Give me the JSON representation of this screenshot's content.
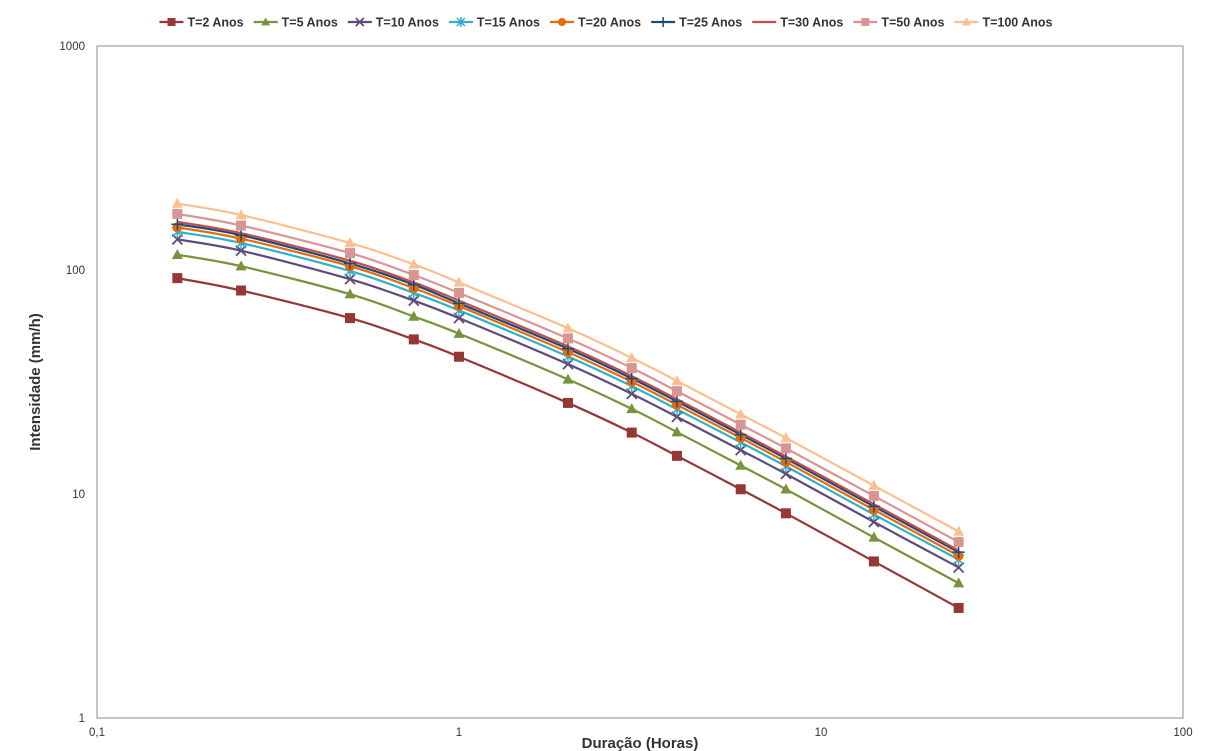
{
  "chart_data": {
    "type": "line",
    "title": "",
    "xlabel": "Duração (Horas)",
    "ylabel": "Intensidade (mm/h)",
    "xscale": "log",
    "yscale": "log",
    "xlim": [
      0.1,
      100
    ],
    "ylim": [
      1,
      1000
    ],
    "grid": true,
    "legend_position": "top",
    "x_tick_labels": [
      "0,1",
      "1",
      "10",
      "100"
    ],
    "y_tick_labels": [
      "1",
      "10",
      "100",
      "1000"
    ],
    "x": [
      0.1667,
      0.25,
      0.5,
      0.75,
      1,
      2,
      3,
      4,
      6,
      8,
      14,
      24
    ],
    "series": [
      {
        "name": "T=2 Anos",
        "color": "#953735",
        "marker": "square",
        "values": [
          92,
          81,
          61,
          49,
          41,
          25.5,
          18.8,
          14.8,
          10.5,
          8.2,
          5.0,
          3.1
        ]
      },
      {
        "name": "T=5 Anos",
        "color": "#77933c",
        "marker": "triangle",
        "values": [
          117,
          104,
          78,
          62,
          52,
          32.5,
          24.0,
          18.9,
          13.4,
          10.5,
          6.4,
          4.0
        ]
      },
      {
        "name": "T=10 Anos",
        "color": "#604a7b",
        "marker": "x",
        "values": [
          137,
          122,
          91,
          73,
          61,
          38.0,
          28.0,
          22.1,
          15.7,
          12.3,
          7.5,
          4.7
        ]
      },
      {
        "name": "T=15 Anos",
        "color": "#31b0c8",
        "marker": "star",
        "values": [
          148,
          132,
          99,
          79,
          66,
          41.1,
          30.3,
          23.9,
          17.0,
          13.3,
          8.1,
          5.1
        ]
      },
      {
        "name": "T=20 Anos",
        "color": "#e46c0a",
        "marker": "circle",
        "values": [
          155,
          138,
          104,
          83,
          69,
          43.0,
          31.7,
          25.0,
          17.8,
          13.9,
          8.5,
          5.3
        ]
      },
      {
        "name": "T=25 Anos",
        "color": "#1f497d",
        "marker": "plus",
        "values": [
          160,
          143,
          107,
          86,
          71,
          44.5,
          32.8,
          25.9,
          18.4,
          14.4,
          8.8,
          5.5
        ]
      },
      {
        "name": "T=30 Anos",
        "color": "#c0504d",
        "marker": "none",
        "values": [
          164,
          146,
          110,
          88,
          73,
          45.6,
          33.6,
          26.5,
          18.8,
          14.7,
          9.0,
          5.6
        ]
      },
      {
        "name": "T=50 Anos",
        "color": "#d99594",
        "marker": "square",
        "values": [
          178,
          158,
          119,
          95,
          79,
          49.5,
          36.5,
          28.8,
          20.4,
          16.0,
          9.8,
          6.1
        ]
      },
      {
        "name": "T=100 Anos",
        "color": "#fac090",
        "marker": "triangle",
        "values": [
          198,
          176,
          132,
          106,
          88,
          55.0,
          40.5,
          32.0,
          22.7,
          17.8,
          10.9,
          6.8
        ]
      }
    ]
  }
}
